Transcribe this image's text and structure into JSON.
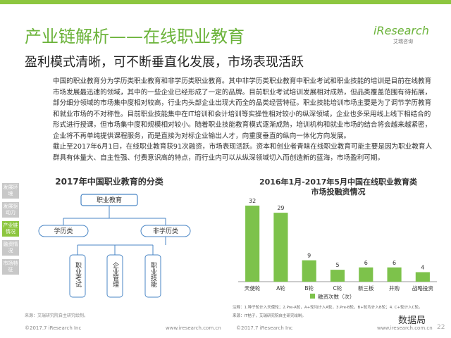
{
  "header": {
    "title": "产业链解析——在线职业教育",
    "subtitle": "盈利模式清晰，可不断垂直化发展，市场表现活跃",
    "logo": "iResearch",
    "logo_sub": "艾瑞咨询"
  },
  "body": {
    "paragraphs": [
      "中国的职业教育分为学历类职业教育和非学历类职业教育。其中非学历类职业教育中职业考试和职业技能的培训是目前在线教育市场发展最迅速的领域，其中的一些企业已经形成了一定的品牌。目前职业考试培训发展相对成熟，但品类覆盖范围有待拓展，部分细分领域的市场集中度相对较高，行业内头部企业出现大而全的品类经营特征。职业技能培训市场主要是为了调节学历教育和就业市场的不对称性。目前职业技能集中在IT培训和会计培训等实操性相对较小的纵深领域，企业也多采用线上线下相结合的形式进行授课，但市场集中度和规模相对较小。随着职业技能教育模式逐渐成熟，培训机构和就业市场的结合将会越来越紧密，企业将不再单纯提供课程服务，而是直接为对标企业输出人才，向重度垂直的纵向一体化方向发展。",
      "截止至2017年6月1日，在线职业教育获91次融资，市场表现活跃。资本和创业者青睐在线职业教育可能主要是因为职业教育人群具有体量大、自主性强、付费意识高的特点，而行业内可以从纵深领域切入而创造新的蓝海，市场盈利可期。"
    ]
  },
  "sidebar": {
    "items": [
      "发展环境",
      "发展驱动力",
      "产业链情况",
      "融资情况",
      "市场特征"
    ]
  },
  "diagram": {
    "title": "2017年中国职业教育的分类",
    "nodes": [
      "职业教育",
      "学历类",
      "非学历类",
      "职业考试",
      "企业管理",
      "职业技能"
    ],
    "source": "来源：艾瑞研究院自主研究绘制。"
  },
  "chart_data": {
    "type": "bar",
    "title": [
      "2016年1月-2017年5月中国在线职业教育类",
      "市场投融资情况"
    ],
    "categories": [
      "天使轮",
      "A轮",
      "B轮",
      "C轮",
      "新三板",
      "并购",
      "战略投资"
    ],
    "series": [
      {
        "name": "融资次数（次）",
        "color": "#7dc24b",
        "values": [
          32,
          29,
          9,
          5,
          6,
          6,
          4
        ]
      }
    ],
    "note": "注释：1.种子轮计入天使轮；2.Pre-A轮，A+轮均计入A轮，3.Pre-B轮，B+轮均计入B轮；4. C+轮计入C轮。",
    "source": "来源：IT桔子，艾瑞研究院自主研究绘制。"
  },
  "footer": {
    "left_copyright": "©2017.7 iResearch Inc",
    "left_url": "www.iresearch.com.cn",
    "right_copyright": "©2017.7 iResearch Inc",
    "right_url": "www.iresearch.com.cn",
    "page": "22",
    "watermark": "数据局"
  }
}
